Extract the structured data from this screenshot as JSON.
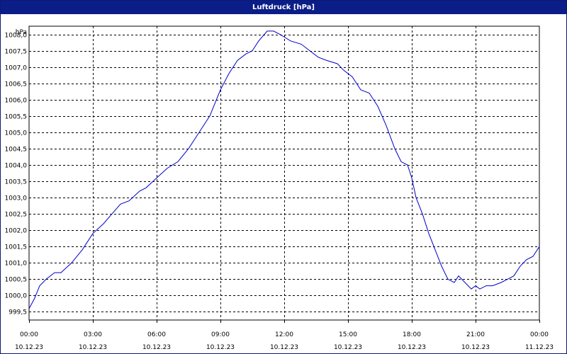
{
  "window": {
    "title": "Luftdruck [hPa]"
  },
  "chart_data": {
    "type": "line",
    "title": "Luftdruck [hPa]",
    "ylabel": "hPa",
    "xlabel": "",
    "ylim": [
      999.25,
      1008.25
    ],
    "yticks": [
      999.5,
      1000.0,
      1000.5,
      1001.0,
      1001.5,
      1002.0,
      1002.5,
      1003.0,
      1003.5,
      1004.0,
      1004.5,
      1005.0,
      1005.5,
      1006.0,
      1006.5,
      1007.0,
      1007.5,
      1008.0
    ],
    "ytick_labels": [
      "999,5",
      "1000,0",
      "1000,5",
      "1001,0",
      "1001,5",
      "1002,0",
      "1002,5",
      "1003,0",
      "1003,5",
      "1004,0",
      "1004,5",
      "1005,0",
      "1005,5",
      "1006,0",
      "1006,5",
      "1007,0",
      "1007,5",
      "1008,0"
    ],
    "xlim": [
      0,
      24
    ],
    "xticks": [
      0,
      3,
      6,
      9,
      12,
      15,
      18,
      21,
      24
    ],
    "xtick_labels": [
      [
        "00:00",
        "10.12.23"
      ],
      [
        "03:00",
        "10.12.23"
      ],
      [
        "06:00",
        "10.12.23"
      ],
      [
        "09:00",
        "10.12.23"
      ],
      [
        "12:00",
        "10.12.23"
      ],
      [
        "15:00",
        "10.12.23"
      ],
      [
        "18:00",
        "10.12.23"
      ],
      [
        "21:00",
        "10.12.23"
      ],
      [
        "00:00",
        "11.12.23"
      ]
    ],
    "grid": true,
    "series": [
      {
        "name": "",
        "color": "#0000cc",
        "x": [
          0,
          0.25,
          0.5,
          0.8,
          1.2,
          1.5,
          2.0,
          2.5,
          3.0,
          3.5,
          3.9,
          4.3,
          4.7,
          5.2,
          5.5,
          6.0,
          6.5,
          7.0,
          7.5,
          8.0,
          8.5,
          9.0,
          9.4,
          9.8,
          10.2,
          10.5,
          10.8,
          11.2,
          11.5,
          11.8,
          12.3,
          12.8,
          13.2,
          13.6,
          14.0,
          14.5,
          14.8,
          15.2,
          15.6,
          16.0,
          16.4,
          16.8,
          17.2,
          17.5,
          17.8,
          18.0,
          18.2,
          18.5,
          18.8,
          19.1,
          19.4,
          19.7,
          20.0,
          20.2,
          20.5,
          20.8,
          21.0,
          21.2,
          21.5,
          21.8,
          22.2,
          22.5,
          22.8,
          23.1,
          23.4,
          23.7,
          24.0
        ],
        "y": [
          999.6,
          999.9,
          1000.3,
          1000.5,
          1000.7,
          1000.7,
          1001.0,
          1001.4,
          1001.9,
          1002.2,
          1002.5,
          1002.8,
          1002.9,
          1003.2,
          1003.3,
          1003.6,
          1003.9,
          1004.1,
          1004.5,
          1005.0,
          1005.5,
          1006.3,
          1006.8,
          1007.2,
          1007.4,
          1007.5,
          1007.8,
          1008.1,
          1008.1,
          1008.0,
          1007.8,
          1007.7,
          1007.5,
          1007.3,
          1007.2,
          1007.1,
          1006.9,
          1006.7,
          1006.3,
          1006.2,
          1005.8,
          1005.2,
          1004.5,
          1004.1,
          1004.0,
          1003.6,
          1003.0,
          1002.5,
          1001.9,
          1001.4,
          1000.9,
          1000.5,
          1000.4,
          1000.6,
          1000.4,
          1000.2,
          1000.3,
          1000.2,
          1000.3,
          1000.3,
          1000.4,
          1000.5,
          1000.6,
          1000.9,
          1001.1,
          1001.2,
          1001.5
        ]
      }
    ]
  }
}
